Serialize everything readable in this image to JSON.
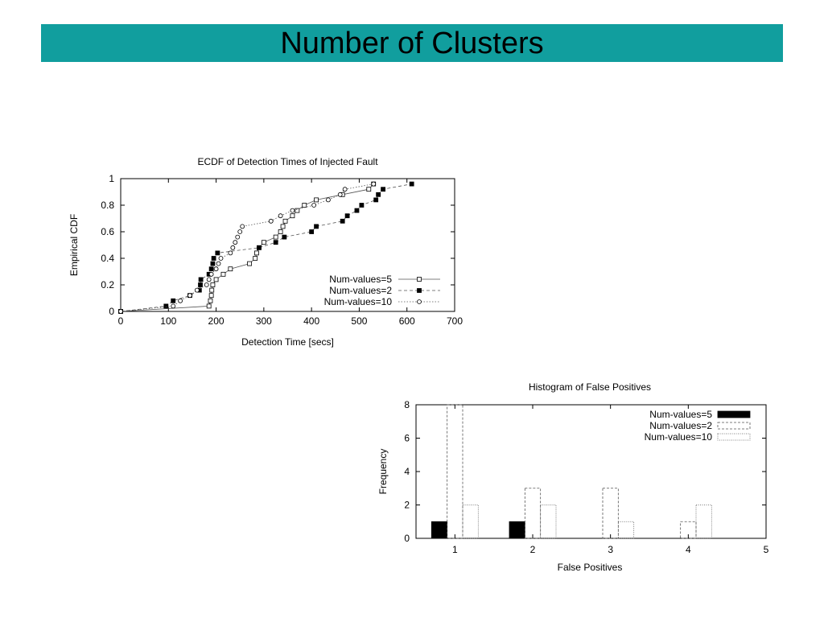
{
  "slide": {
    "title": "Number of Clusters",
    "title_bar_color": "#119e9e"
  },
  "chart_data": [
    {
      "type": "line",
      "title": "ECDF of Detection Times of Injected Fault",
      "xlabel": "Detection Time [secs]",
      "ylabel": "Empirical CDF",
      "xlim": [
        0,
        700
      ],
      "ylim": [
        0,
        1
      ],
      "xticks": [
        "0",
        "100",
        "200",
        "300",
        "400",
        "500",
        "600",
        "700"
      ],
      "yticks": [
        "0",
        "0.2",
        "0.4",
        "0.6",
        "0.8",
        "1"
      ],
      "grid": false,
      "legend_position": "bottom-right",
      "series": [
        {
          "name": "Num-values=5",
          "marker": "open-square",
          "line": "solid",
          "points": [
            [
              0,
              0
            ],
            [
              185,
              0.04
            ],
            [
              188,
              0.08
            ],
            [
              190,
              0.12
            ],
            [
              191,
              0.16
            ],
            [
              193,
              0.2
            ],
            [
              200,
              0.24
            ],
            [
              215,
              0.28
            ],
            [
              230,
              0.32
            ],
            [
              270,
              0.36
            ],
            [
              282,
              0.4
            ],
            [
              285,
              0.44
            ],
            [
              290,
              0.48
            ],
            [
              300,
              0.52
            ],
            [
              325,
              0.56
            ],
            [
              335,
              0.6
            ],
            [
              340,
              0.64
            ],
            [
              345,
              0.68
            ],
            [
              360,
              0.72
            ],
            [
              370,
              0.76
            ],
            [
              385,
              0.8
            ],
            [
              410,
              0.84
            ],
            [
              465,
              0.88
            ],
            [
              520,
              0.92
            ],
            [
              530,
              0.96
            ]
          ]
        },
        {
          "name": "Num-values=2",
          "marker": "filled-square",
          "line": "dashed",
          "points": [
            [
              0,
              0
            ],
            [
              95,
              0.04
            ],
            [
              110,
              0.08
            ],
            [
              145,
              0.12
            ],
            [
              165,
              0.16
            ],
            [
              167,
              0.2
            ],
            [
              168,
              0.24
            ],
            [
              185,
              0.28
            ],
            [
              190,
              0.32
            ],
            [
              193,
              0.36
            ],
            [
              195,
              0.4
            ],
            [
              203,
              0.44
            ],
            [
              290,
              0.48
            ],
            [
              325,
              0.52
            ],
            [
              343,
              0.56
            ],
            [
              400,
              0.6
            ],
            [
              410,
              0.64
            ],
            [
              465,
              0.68
            ],
            [
              475,
              0.72
            ],
            [
              495,
              0.76
            ],
            [
              505,
              0.8
            ],
            [
              535,
              0.84
            ],
            [
              540,
              0.88
            ],
            [
              550,
              0.92
            ],
            [
              610,
              0.96
            ]
          ]
        },
        {
          "name": "Num-values=10",
          "marker": "open-circle",
          "line": "dotted",
          "points": [
            [
              0,
              0
            ],
            [
              110,
              0.04
            ],
            [
              125,
              0.08
            ],
            [
              145,
              0.12
            ],
            [
              160,
              0.16
            ],
            [
              180,
              0.2
            ],
            [
              185,
              0.24
            ],
            [
              190,
              0.28
            ],
            [
              200,
              0.32
            ],
            [
              205,
              0.36
            ],
            [
              210,
              0.4
            ],
            [
              230,
              0.44
            ],
            [
              235,
              0.48
            ],
            [
              240,
              0.52
            ],
            [
              245,
              0.56
            ],
            [
              250,
              0.6
            ],
            [
              255,
              0.64
            ],
            [
              315,
              0.68
            ],
            [
              335,
              0.72
            ],
            [
              360,
              0.76
            ],
            [
              405,
              0.8
            ],
            [
              435,
              0.84
            ],
            [
              460,
              0.88
            ],
            [
              470,
              0.92
            ],
            [
              530,
              0.96
            ]
          ]
        }
      ]
    },
    {
      "type": "bar",
      "title": "Histogram of False Positives",
      "xlabel": "False Positives",
      "ylabel": "Frequency",
      "categories": [
        "1",
        "2",
        "3",
        "4"
      ],
      "xticks": [
        "1",
        "2",
        "3",
        "4",
        "5"
      ],
      "yticks": [
        "0",
        "2",
        "4",
        "6",
        "8"
      ],
      "xlim": [
        0.5,
        5
      ],
      "ylim": [
        0,
        8
      ],
      "grid": false,
      "legend_position": "top-right",
      "series": [
        {
          "name": "Num-values=5",
          "fill": "solid",
          "values": [
            1,
            1,
            0,
            0
          ]
        },
        {
          "name": "Num-values=2",
          "fill": "dashed-outline",
          "values": [
            8,
            3,
            3,
            1
          ]
        },
        {
          "name": "Num-values=10",
          "fill": "dotted-outline",
          "values": [
            2,
            2,
            1,
            2
          ]
        }
      ]
    }
  ]
}
